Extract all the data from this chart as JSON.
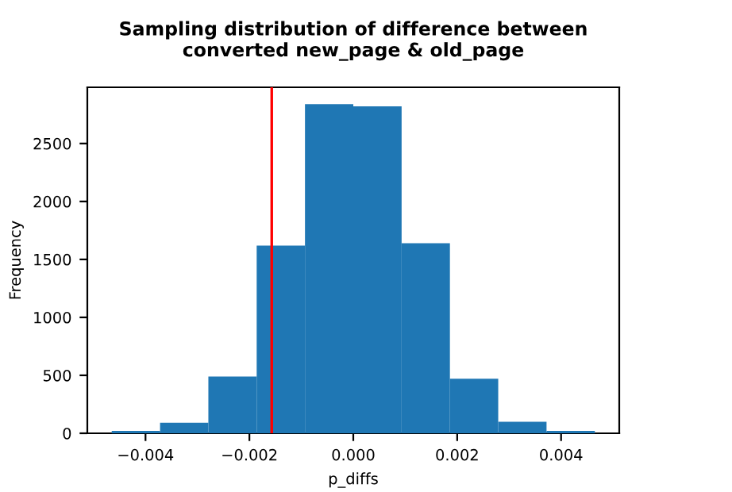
{
  "chart_data": {
    "type": "histogram",
    "title": "Sampling distribution of difference between\nconverted new_page & old_page",
    "xlabel": "p_diffs",
    "ylabel": "Frequency",
    "bins": [
      -0.00465,
      -0.00372,
      -0.00279,
      -0.00186,
      -0.00093,
      0.0,
      0.00093,
      0.00186,
      0.00279,
      0.00372,
      0.00465
    ],
    "values": [
      20,
      90,
      490,
      1620,
      2840,
      2820,
      1640,
      470,
      100,
      20
    ],
    "color": "#1f77b4",
    "xlim": [
      -0.00512,
      0.00512
    ],
    "ylim": [
      0,
      2985
    ],
    "xticks": [
      {
        "value": -0.004,
        "label": "−0.004"
      },
      {
        "value": -0.002,
        "label": "−0.002"
      },
      {
        "value": 0.0,
        "label": "0.000"
      },
      {
        "value": 0.002,
        "label": "0.002"
      },
      {
        "value": 0.004,
        "label": "0.004"
      }
    ],
    "yticks": [
      0,
      500,
      1000,
      1500,
      2000,
      2500
    ],
    "ref_lines": [
      {
        "axis": "x",
        "value": -0.00157,
        "color": "#ff0000"
      }
    ],
    "grid": false,
    "legend": false
  }
}
